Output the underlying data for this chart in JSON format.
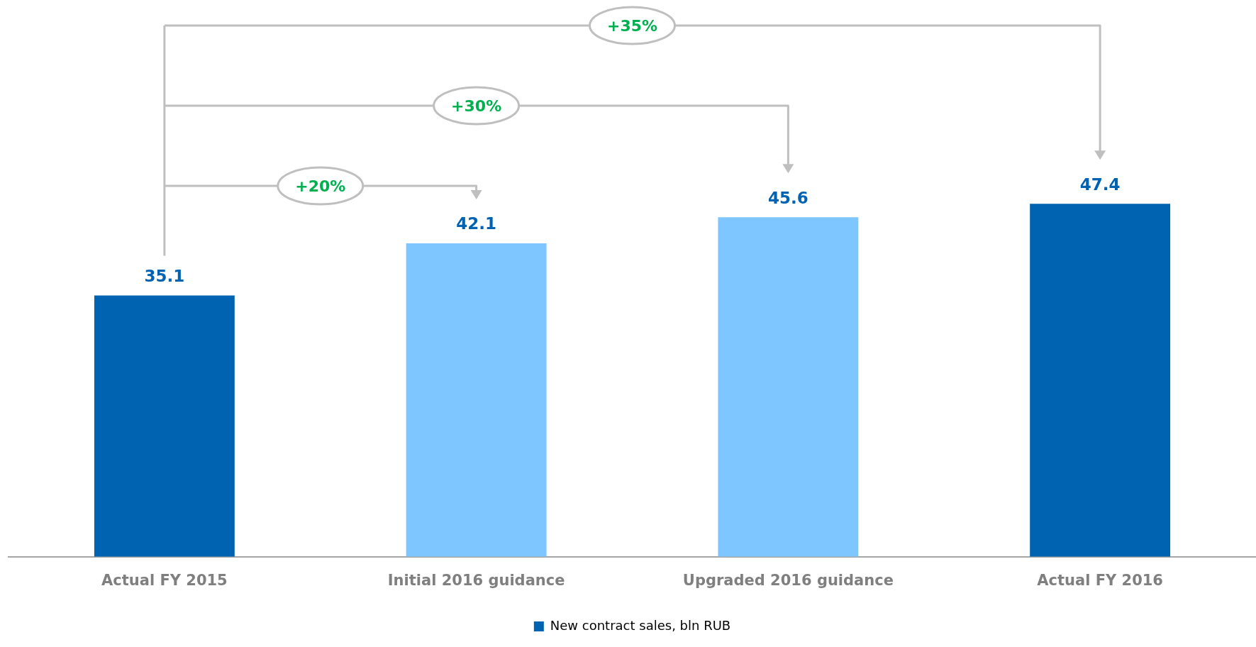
{
  "chart_data": {
    "type": "bar",
    "categories": [
      "Actual FY 2015",
      "Initial 2016 guidance",
      "Upgraded 2016 guidance",
      "Actual FY 2016"
    ],
    "series": [
      {
        "name": "New contract sales, bln RUB",
        "color": "#0063b1",
        "colors": [
          "#0063b1",
          "#7dc6ff",
          "#7dc6ff",
          "#0063b1"
        ],
        "values": [
          35.1,
          42.1,
          45.6,
          47.4
        ]
      }
    ],
    "data_labels": true,
    "legend": "bottom",
    "grid": false,
    "annotations": [
      "+20%",
      "+30%",
      "+35%"
    ]
  }
}
